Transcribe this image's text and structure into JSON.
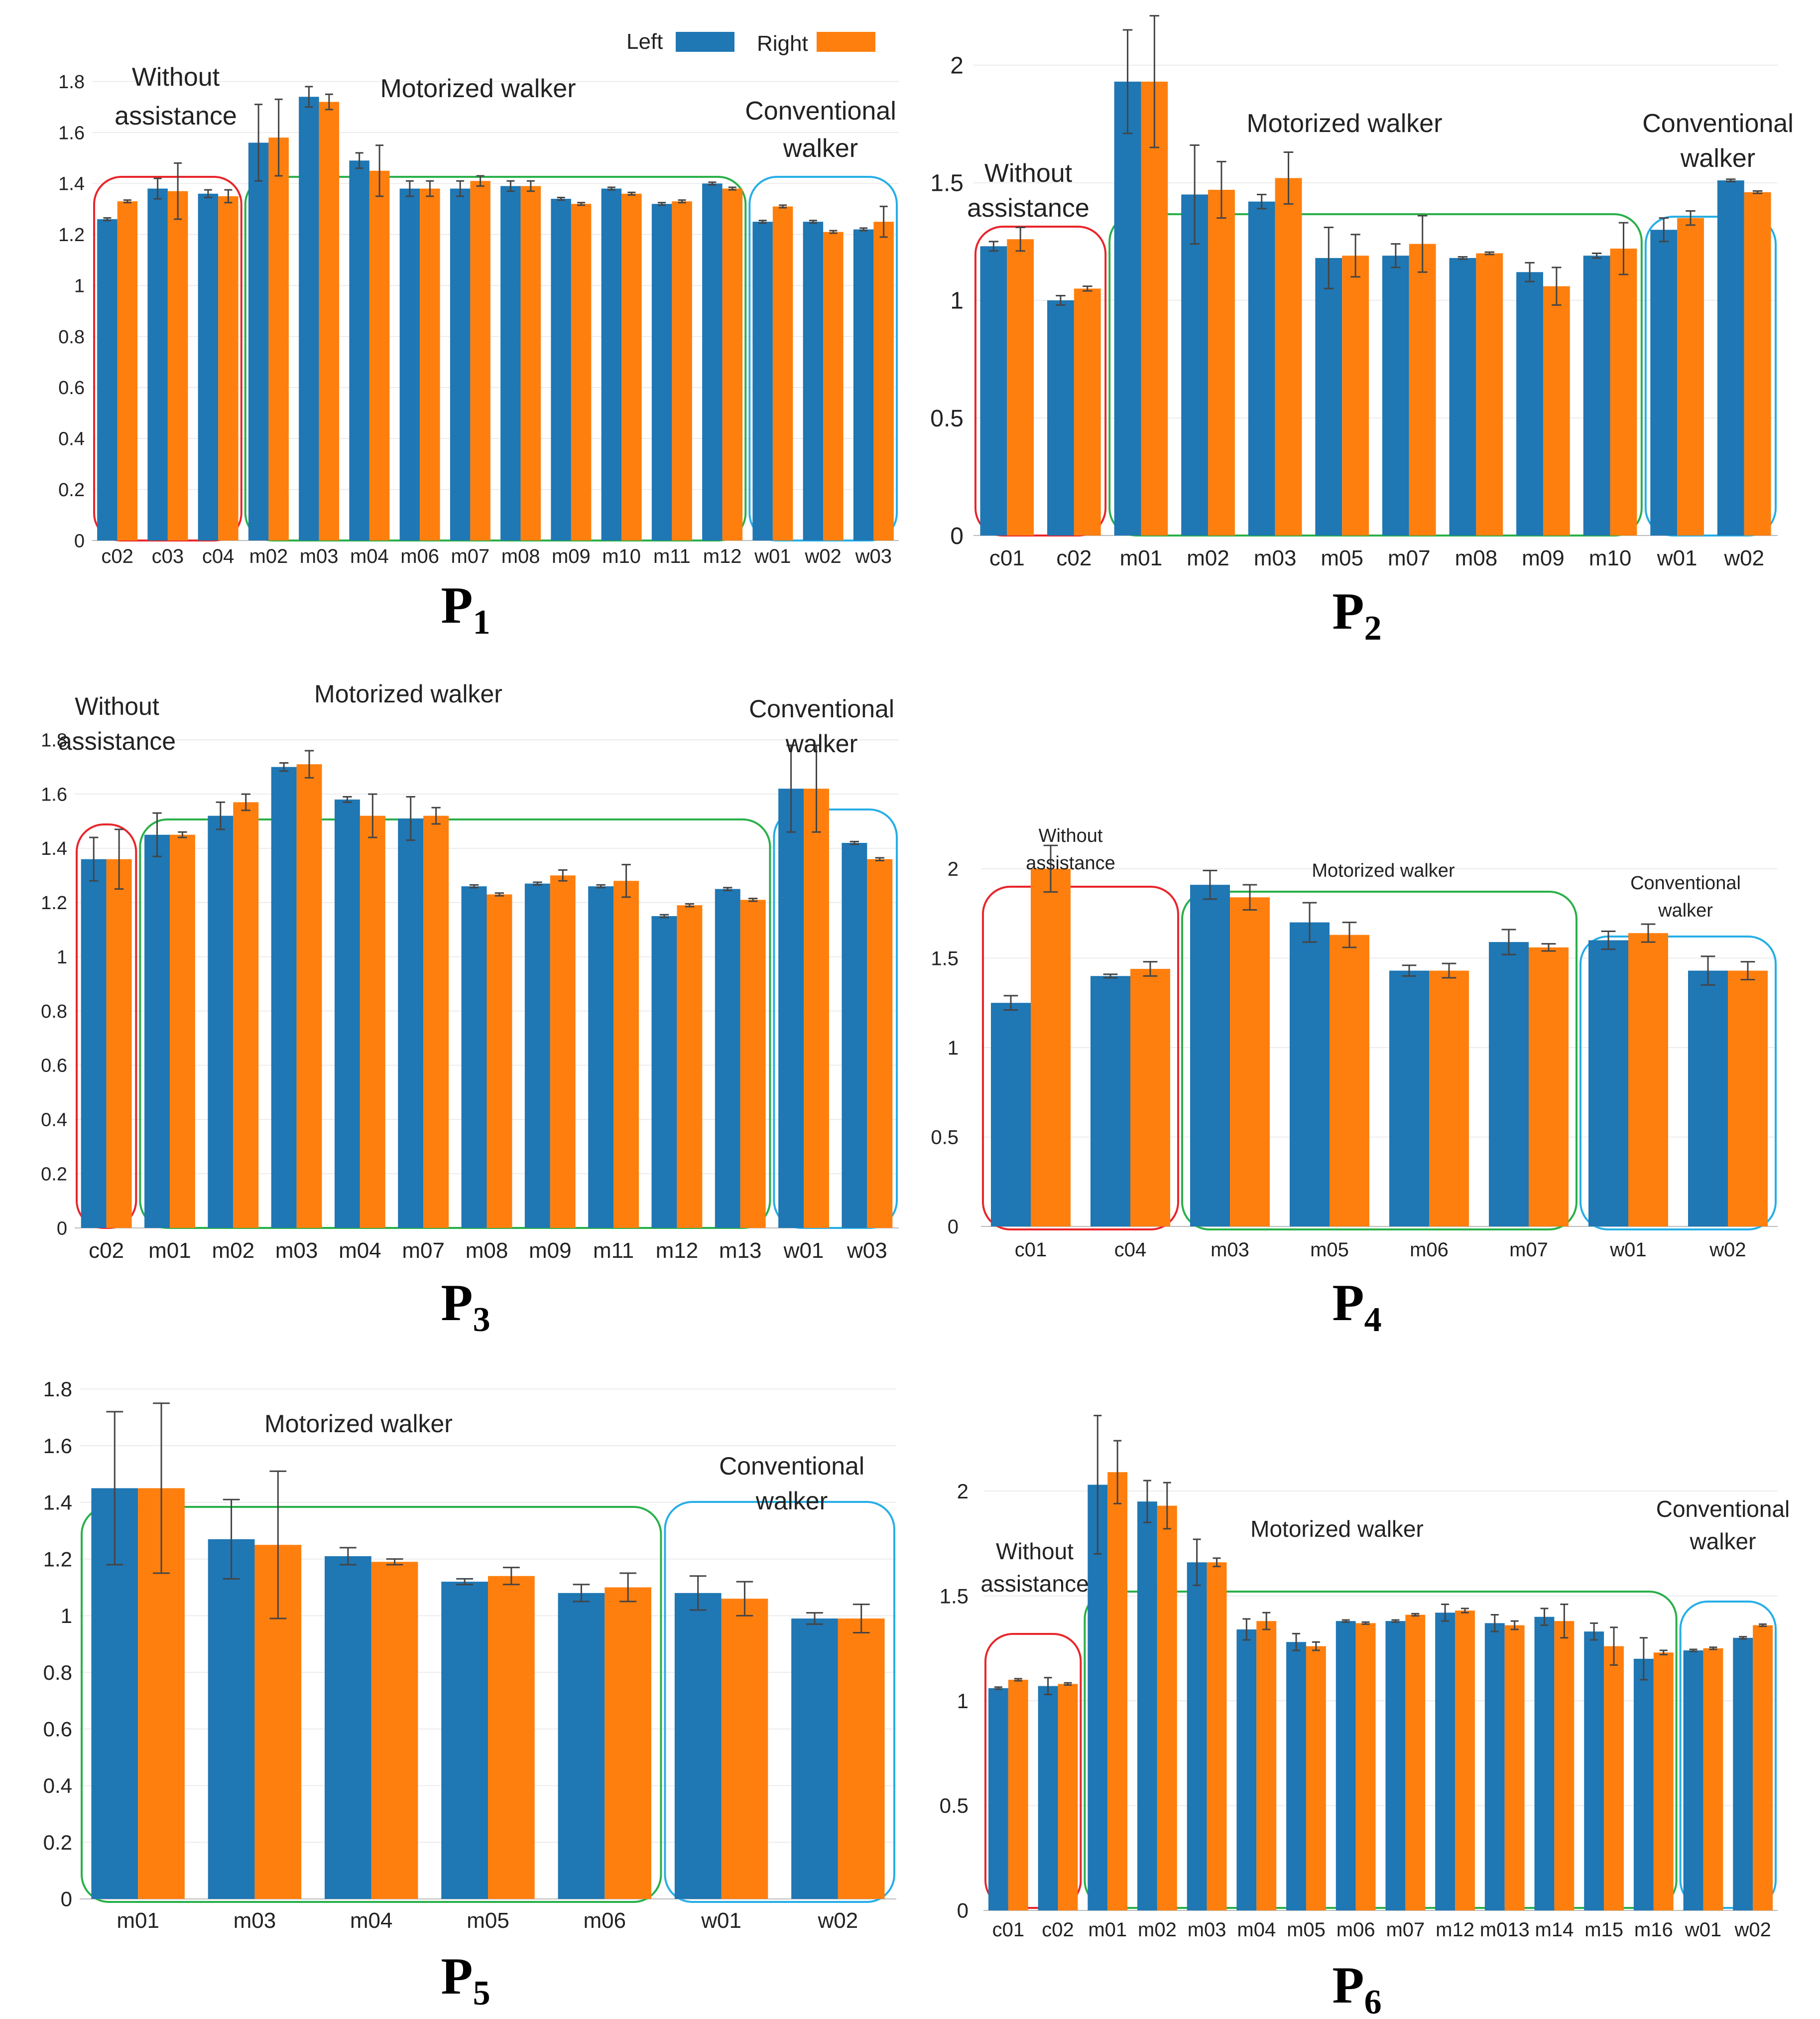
{
  "legend": {
    "left_label": "Left",
    "right_label": "Right",
    "left_color": "#1f77b4",
    "right_color": "#ff7f0e"
  },
  "group_colors": {
    "without": "#e8262b",
    "motorized": "#2ab04a",
    "conventional": "#27aee6"
  },
  "chart_data": [
    {
      "type": "bar",
      "panel_label": "P",
      "panel_sub": "1",
      "categories": [
        "c02",
        "c03",
        "c04",
        "m02",
        "m03",
        "m04",
        "m06",
        "m07",
        "m08",
        "m09",
        "m10",
        "m11",
        "m12",
        "w01",
        "w02",
        "w03"
      ],
      "series": [
        {
          "name": "Left",
          "values": [
            1.26,
            1.38,
            1.36,
            1.56,
            1.74,
            1.49,
            1.38,
            1.38,
            1.39,
            1.34,
            1.38,
            1.32,
            1.4,
            1.25,
            1.25,
            1.22
          ],
          "errors": [
            0.005,
            0.04,
            0.015,
            0.15,
            0.04,
            0.03,
            0.03,
            0.03,
            0.02,
            0.005,
            0.005,
            0.005,
            0.005,
            0.005,
            0.005,
            0.005
          ]
        },
        {
          "name": "Right",
          "values": [
            1.33,
            1.37,
            1.35,
            1.58,
            1.72,
            1.45,
            1.38,
            1.41,
            1.39,
            1.32,
            1.36,
            1.33,
            1.38,
            1.31,
            1.21,
            1.25
          ],
          "errors": [
            0.005,
            0.11,
            0.025,
            0.15,
            0.03,
            0.1,
            0.03,
            0.02,
            0.02,
            0.005,
            0.005,
            0.005,
            0.005,
            0.005,
            0.005,
            0.06
          ]
        }
      ],
      "yticks": [
        0,
        0.2,
        0.4,
        0.6,
        0.8,
        1,
        1.2,
        1.4,
        1.6,
        1.8
      ],
      "ylim": [
        0,
        1.85
      ],
      "groups": [
        {
          "key": "without",
          "label_lines": [
            "Without",
            "assistance"
          ],
          "start": 0,
          "end": 2
        },
        {
          "key": "motorized",
          "label_lines": [
            "Motorized walker"
          ],
          "start": 3,
          "end": 12
        },
        {
          "key": "conventional",
          "label_lines": [
            "Conventional",
            "walker"
          ],
          "start": 13,
          "end": 15
        }
      ],
      "show_legend": true
    },
    {
      "type": "bar",
      "panel_label": "P",
      "panel_sub": "2",
      "categories": [
        "c01",
        "c02",
        "m01",
        "m02",
        "m03",
        "m05",
        "m07",
        "m08",
        "m09",
        "m10",
        "w01",
        "w02"
      ],
      "series": [
        {
          "name": "Left",
          "values": [
            1.23,
            1.0,
            1.93,
            1.45,
            1.42,
            1.18,
            1.19,
            1.18,
            1.12,
            1.19,
            1.3,
            1.51
          ],
          "errors": [
            0.02,
            0.02,
            0.22,
            0.21,
            0.03,
            0.13,
            0.05,
            0.005,
            0.04,
            0.01,
            0.05,
            0.005
          ]
        },
        {
          "name": "Right",
          "values": [
            1.26,
            1.05,
            1.93,
            1.47,
            1.52,
            1.19,
            1.24,
            1.2,
            1.06,
            1.22,
            1.35,
            1.46
          ],
          "errors": [
            0.05,
            0.01,
            0.28,
            0.12,
            0.11,
            0.09,
            0.12,
            0.005,
            0.08,
            0.11,
            0.03,
            0.005
          ]
        }
      ],
      "yticks": [
        0,
        0.5,
        1,
        1.5,
        2
      ],
      "ylim": [
        0,
        2.15
      ],
      "groups": [
        {
          "key": "without",
          "label_lines": [
            "Without",
            "assistance"
          ],
          "start": 0,
          "end": 1
        },
        {
          "key": "motorized",
          "label_lines": [
            "Motorized walker"
          ],
          "start": 2,
          "end": 9
        },
        {
          "key": "conventional",
          "label_lines": [
            "Conventional",
            "walker"
          ],
          "start": 10,
          "end": 11
        }
      ],
      "show_legend": false
    },
    {
      "type": "bar",
      "panel_label": "P",
      "panel_sub": "3",
      "categories": [
        "c02",
        "m01",
        "m02",
        "m03",
        "m04",
        "m07",
        "m08",
        "m09",
        "m11",
        "m12",
        "m13",
        "w01",
        "w03"
      ],
      "series": [
        {
          "name": "Left",
          "values": [
            1.36,
            1.45,
            1.52,
            1.7,
            1.58,
            1.51,
            1.26,
            1.27,
            1.26,
            1.15,
            1.25,
            1.62,
            1.42
          ],
          "errors": [
            0.08,
            0.08,
            0.05,
            0.015,
            0.01,
            0.08,
            0.005,
            0.005,
            0.005,
            0.005,
            0.005,
            0.16,
            0.005
          ]
        },
        {
          "name": "Right",
          "values": [
            1.36,
            1.45,
            1.57,
            1.71,
            1.52,
            1.52,
            1.23,
            1.3,
            1.28,
            1.19,
            1.21,
            1.62,
            1.36
          ],
          "errors": [
            0.11,
            0.01,
            0.03,
            0.05,
            0.08,
            0.03,
            0.005,
            0.02,
            0.06,
            0.005,
            0.005,
            0.16,
            0.005
          ]
        }
      ],
      "yticks": [
        0,
        0.2,
        0.4,
        0.6,
        0.8,
        1,
        1.2,
        1.4,
        1.6,
        1.8
      ],
      "ylim": [
        0,
        1.85
      ],
      "groups": [
        {
          "key": "without",
          "label_lines": [
            "Without",
            "assistance"
          ],
          "start": 0,
          "end": 0
        },
        {
          "key": "motorized",
          "label_lines": [
            "Motorized walker"
          ],
          "start": 1,
          "end": 10
        },
        {
          "key": "conventional",
          "label_lines": [
            "Conventional",
            "walker"
          ],
          "start": 11,
          "end": 12
        }
      ],
      "show_legend": false
    },
    {
      "type": "bar",
      "panel_label": "P",
      "panel_sub": "4",
      "categories": [
        "c01",
        "c04",
        "m03",
        "m05",
        "m06",
        "m07",
        "w01",
        "w02"
      ],
      "series": [
        {
          "name": "Left",
          "values": [
            1.25,
            1.4,
            1.91,
            1.7,
            1.43,
            1.59,
            1.6,
            1.43
          ],
          "errors": [
            0.04,
            0.01,
            0.08,
            0.11,
            0.03,
            0.07,
            0.05,
            0.08
          ]
        },
        {
          "name": "Right",
          "values": [
            2.0,
            1.44,
            1.84,
            1.63,
            1.43,
            1.56,
            1.64,
            1.43
          ],
          "errors": [
            0.13,
            0.04,
            0.07,
            0.07,
            0.04,
            0.02,
            0.05,
            0.05
          ]
        }
      ],
      "yticks": [
        0,
        0.5,
        1,
        1.5,
        2
      ],
      "ylim": [
        0,
        2.15
      ],
      "groups": [
        {
          "key": "without",
          "label_lines": [
            "Without",
            "assistance"
          ],
          "start": 0,
          "end": 1
        },
        {
          "key": "motorized",
          "label_lines": [
            "Motorized walker"
          ],
          "start": 2,
          "end": 5
        },
        {
          "key": "conventional",
          "label_lines": [
            "Conventional",
            "walker"
          ],
          "start": 6,
          "end": 7
        }
      ],
      "show_legend": false
    },
    {
      "type": "bar",
      "panel_label": "P",
      "panel_sub": "5",
      "categories": [
        "m01",
        "m03",
        "m04",
        "m05",
        "m06",
        "w01",
        "w02"
      ],
      "series": [
        {
          "name": "Left",
          "values": [
            1.45,
            1.27,
            1.21,
            1.12,
            1.08,
            1.08,
            0.99
          ],
          "errors": [
            0.27,
            0.14,
            0.03,
            0.01,
            0.03,
            0.06,
            0.02
          ]
        },
        {
          "name": "Right",
          "values": [
            1.45,
            1.25,
            1.19,
            1.14,
            1.1,
            1.06,
            0.99
          ],
          "errors": [
            0.3,
            0.26,
            0.01,
            0.03,
            0.05,
            0.06,
            0.05
          ]
        }
      ],
      "yticks": [
        0,
        0.2,
        0.4,
        0.6,
        0.8,
        1,
        1.2,
        1.4,
        1.6,
        1.8
      ],
      "ylim": [
        0,
        1.85
      ],
      "groups": [
        {
          "key": "motorized",
          "label_lines": [
            "Motorized walker"
          ],
          "start": 0,
          "end": 4
        },
        {
          "key": "conventional",
          "label_lines": [
            "Conventional",
            "walker"
          ],
          "start": 5,
          "end": 6
        }
      ],
      "show_legend": false
    },
    {
      "type": "bar",
      "panel_label": "P",
      "panel_sub": "6",
      "categories": [
        "c01",
        "c02",
        "m01",
        "m02",
        "m03",
        "m04",
        "m05",
        "m06",
        "m07",
        "m12",
        "m013",
        "m14",
        "m15",
        "m16",
        "w01",
        "w02"
      ],
      "series": [
        {
          "name": "Left",
          "values": [
            1.06,
            1.07,
            2.03,
            1.95,
            1.66,
            1.34,
            1.28,
            1.38,
            1.38,
            1.42,
            1.37,
            1.4,
            1.33,
            1.2,
            1.24,
            1.3
          ],
          "errors": [
            0.005,
            0.04,
            0.33,
            0.1,
            0.11,
            0.05,
            0.04,
            0.005,
            0.005,
            0.04,
            0.04,
            0.04,
            0.04,
            0.1,
            0.005,
            0.005
          ]
        },
        {
          "name": "Right",
          "values": [
            1.1,
            1.08,
            2.09,
            1.93,
            1.66,
            1.38,
            1.26,
            1.37,
            1.41,
            1.43,
            1.36,
            1.38,
            1.26,
            1.23,
            1.25,
            1.36
          ],
          "errors": [
            0.005,
            0.005,
            0.15,
            0.11,
            0.02,
            0.04,
            0.02,
            0.005,
            0.005,
            0.01,
            0.02,
            0.08,
            0.09,
            0.01,
            0.005,
            0.005
          ]
        }
      ],
      "yticks": [
        0,
        0.5,
        1,
        1.5,
        2
      ],
      "ylim": [
        0,
        2.15
      ],
      "groups": [
        {
          "key": "without",
          "label_lines": [
            "Without",
            "assistance"
          ],
          "start": 0,
          "end": 1
        },
        {
          "key": "motorized",
          "label_lines": [
            "Motorized walker"
          ],
          "start": 2,
          "end": 13
        },
        {
          "key": "conventional",
          "label_lines": [
            "Conventional",
            "walker"
          ],
          "start": 14,
          "end": 15
        }
      ],
      "show_legend": false
    }
  ]
}
